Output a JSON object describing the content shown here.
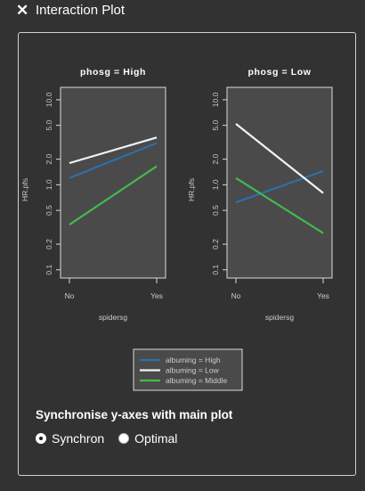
{
  "window": {
    "title": "Interaction Plot"
  },
  "colors": {
    "background": "#323232",
    "plot_bg": "#4a4a4a",
    "high": "#2e6ea8",
    "low": "#f2f2f2",
    "middle": "#45b84d",
    "frame": "#d9d9d9",
    "text": "#cccccc"
  },
  "sync": {
    "heading": "Synchronise y-axes with main plot",
    "options": [
      {
        "label": "Synchron",
        "checked": true
      },
      {
        "label": "Optimal",
        "checked": false
      }
    ]
  },
  "chart_data": [
    {
      "type": "line",
      "title": "phosg = High",
      "xlabel": "spidersg",
      "ylabel": "HR.pfs",
      "categories": [
        "No",
        "Yes"
      ],
      "y_scale": "log",
      "ylim": [
        0.08,
        14
      ],
      "y_ticks": [
        "0.1",
        "0.2",
        "0.5",
        "1.0",
        "2.0",
        "5.0",
        "10.0"
      ],
      "series": [
        {
          "name": "albuming = High",
          "values": [
            1.2,
            3.1
          ]
        },
        {
          "name": "albuming = Low",
          "values": [
            1.8,
            3.6
          ]
        },
        {
          "name": "albuming = Middle",
          "values": [
            0.34,
            1.65
          ]
        }
      ],
      "legend": "bottom-center"
    },
    {
      "type": "line",
      "title": "phosg = Low",
      "xlabel": "spidersg",
      "ylabel": "HR.pfs",
      "categories": [
        "No",
        "Yes"
      ],
      "y_scale": "log",
      "ylim": [
        0.08,
        14
      ],
      "y_ticks": [
        "0.1",
        "0.2",
        "0.5",
        "1.0",
        "2.0",
        "5.0",
        "10.0"
      ],
      "series": [
        {
          "name": "albuming = High",
          "values": [
            0.62,
            1.45
          ]
        },
        {
          "name": "albuming = Low",
          "values": [
            5.2,
            0.8
          ]
        },
        {
          "name": "albuming = Middle",
          "values": [
            1.2,
            0.27
          ]
        }
      ],
      "legend": "bottom-center"
    }
  ]
}
